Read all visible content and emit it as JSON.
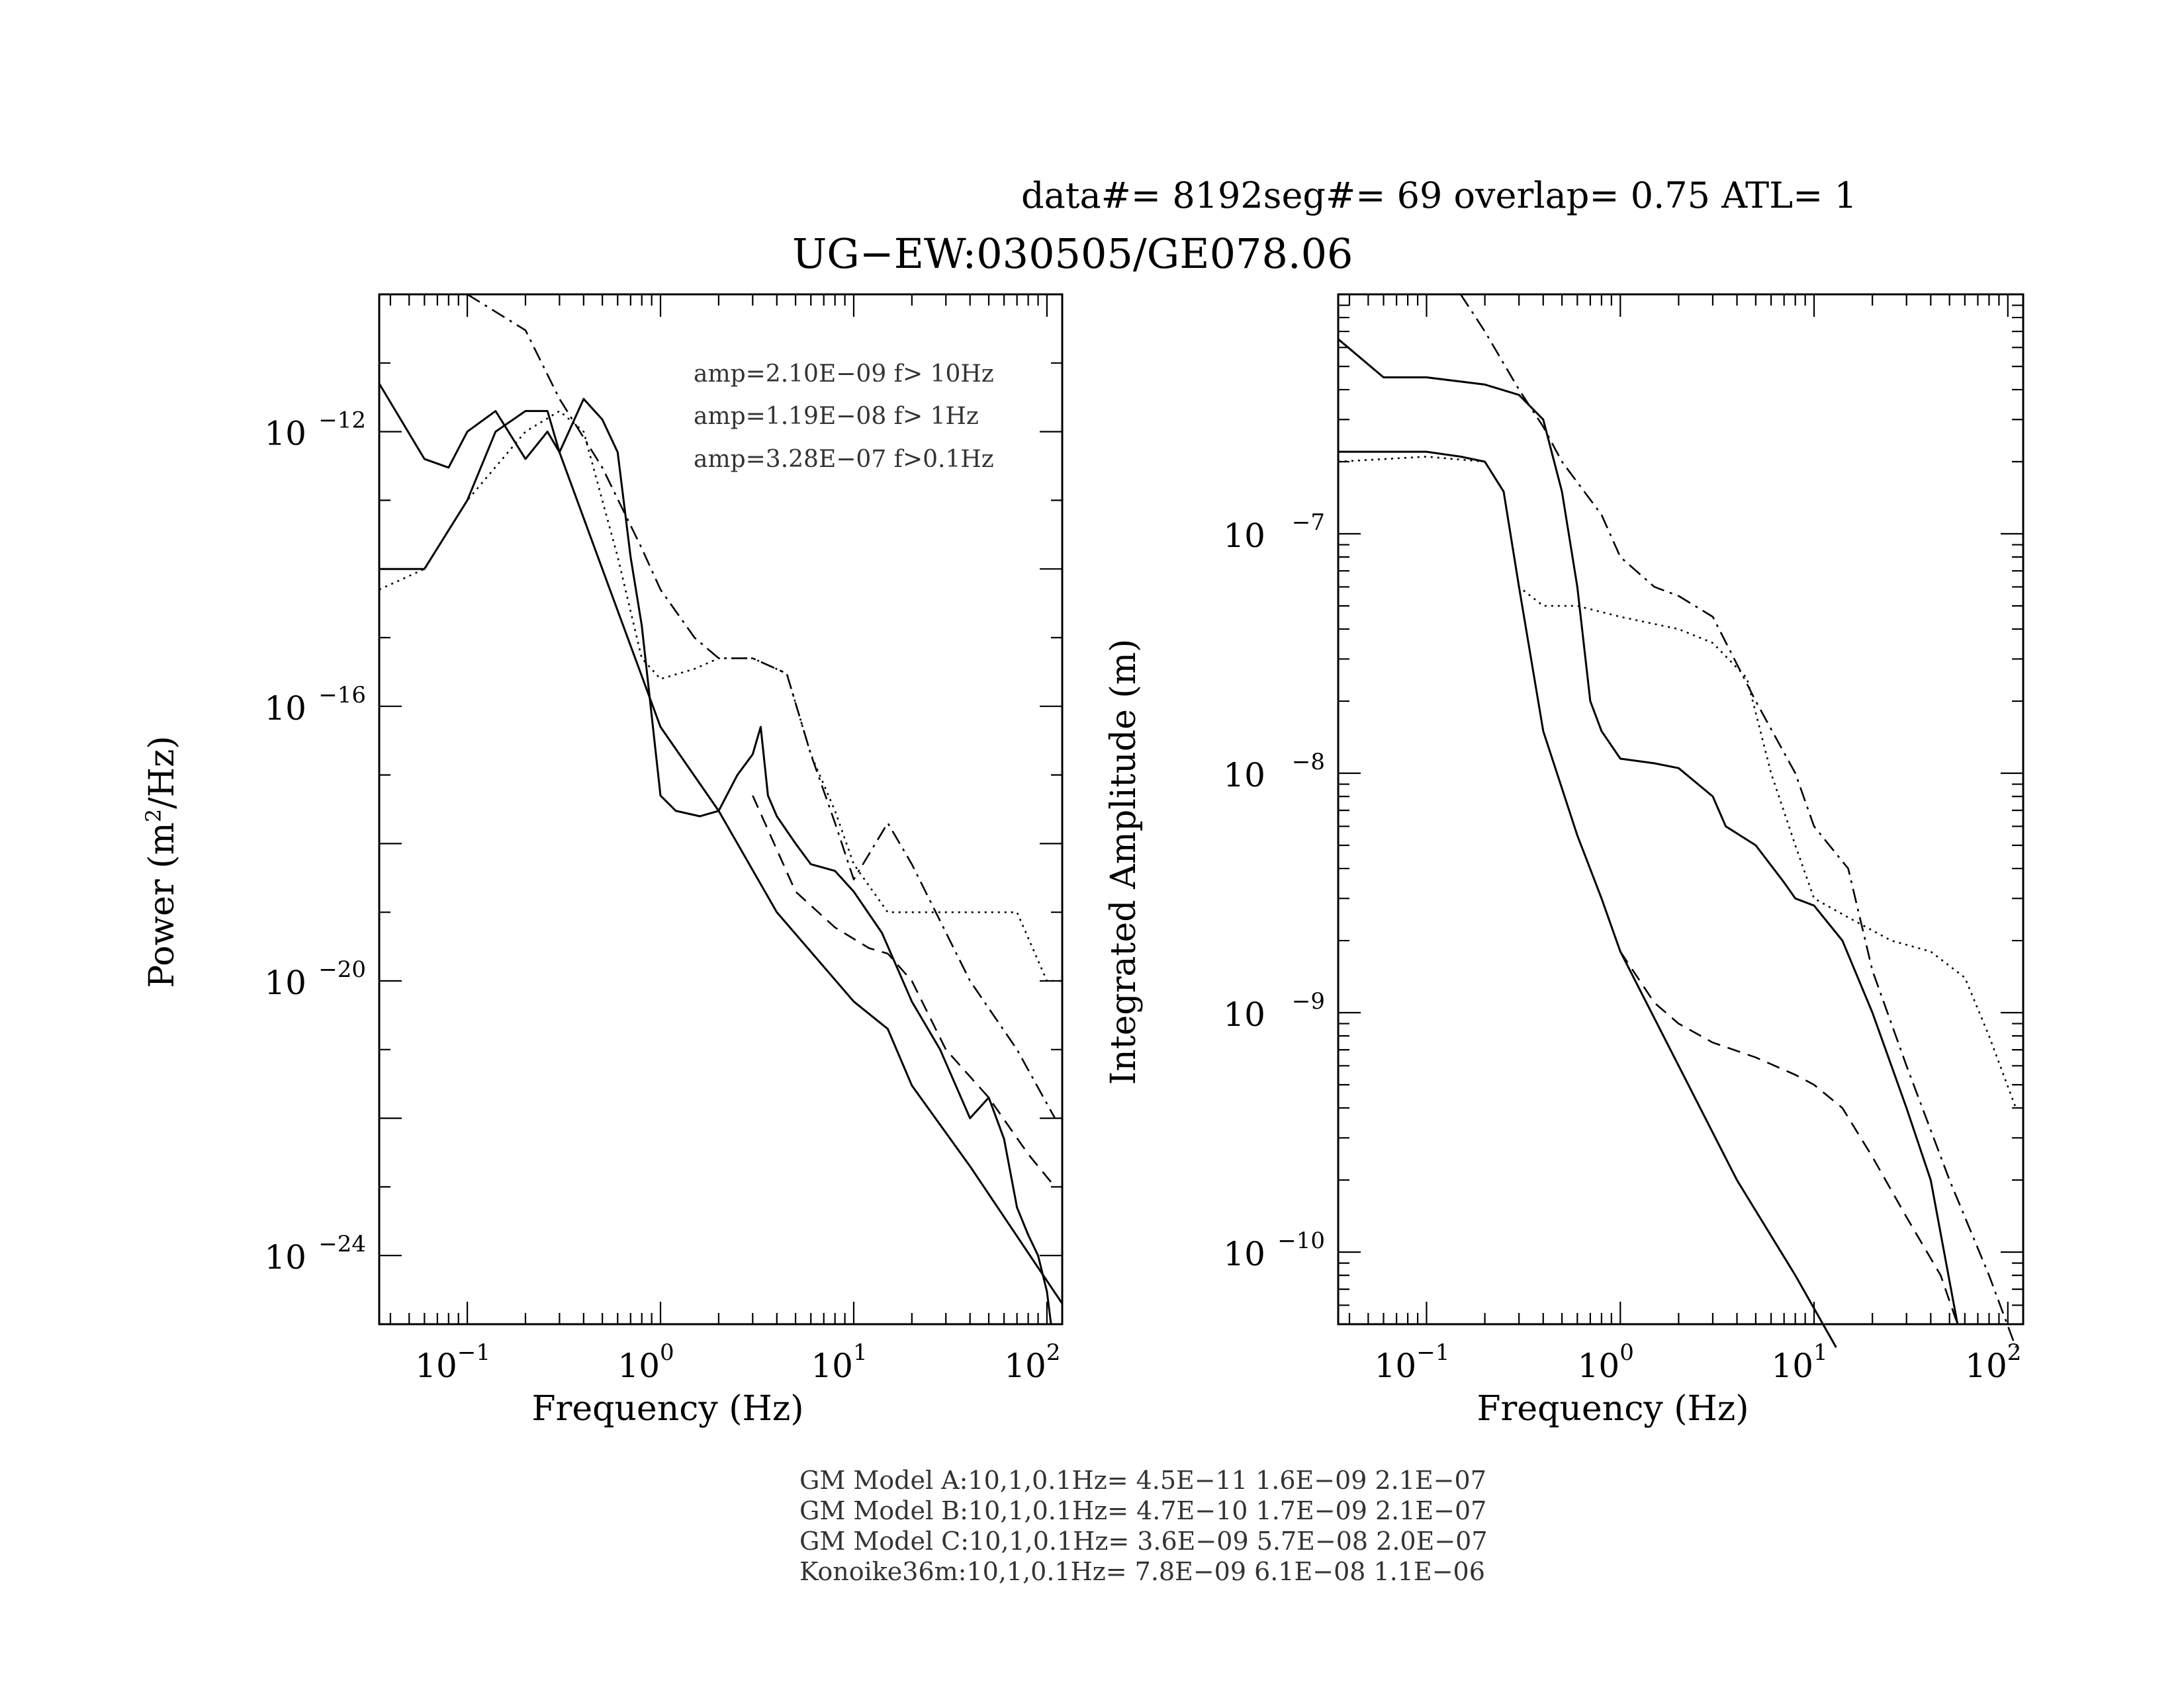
{
  "header": {
    "info": "data#= 8192seg#= 69 overlap=  0.75 ATL= 1",
    "title": "UG−EW:030505/GE078.06"
  },
  "footer": {
    "lines": [
      "GM Model A:10,1,0.1Hz= 4.5E−11 1.6E−09 2.1E−07",
      "GM Model B:10,1,0.1Hz= 4.7E−10 1.7E−09 2.1E−07",
      "GM Model C:10,1,0.1Hz= 3.6E−09 5.7E−08 2.0E−07",
      "Konoike36m:10,1,0.1Hz= 7.8E−09 6.1E−08 1.1E−06"
    ]
  },
  "chart_data": [
    {
      "type": "line",
      "panel": "left",
      "xlabel": "Frequency (Hz)",
      "ylabel_prefix": "Power (m",
      "ylabel_sup": "2",
      "ylabel_suffix": "/Hz)",
      "xscale": "log",
      "yscale": "log",
      "xlim": [
        0.035,
        120
      ],
      "ylim": [
        1e-25,
        1e-10
      ],
      "x_ticks": [
        {
          "base": "10",
          "exp": "−1",
          "value": 0.1
        },
        {
          "base": "10",
          "exp": "0",
          "value": 1
        },
        {
          "base": "10",
          "exp": "1",
          "value": 10
        },
        {
          "base": "10",
          "exp": "2",
          "value": 100
        }
      ],
      "y_ticks": [
        {
          "base": "10",
          "exp": "−12",
          "value": 1e-12
        },
        {
          "base": "10",
          "exp": "−16",
          "value": 1e-16
        },
        {
          "base": "10",
          "exp": "−20",
          "value": 1e-20
        },
        {
          "base": "10",
          "exp": "−24",
          "value": 1e-24
        }
      ],
      "annotations": [
        "amp=2.10E−09 f> 10Hz",
        "amp=1.19E−08 f>  1Hz",
        "amp=3.28E−07 f>0.1Hz"
      ],
      "series": [
        {
          "style": "solid",
          "x": [
            0.035,
            0.06,
            0.08,
            0.1,
            0.14,
            0.2,
            0.26,
            0.3,
            0.4,
            0.5,
            0.6,
            0.7,
            0.8,
            1.0,
            1.2,
            1.6,
            2.0,
            2.5,
            3.0,
            3.3,
            3.6,
            4.0,
            5.0,
            6.0,
            8.0,
            10.0,
            14.0,
            20.0,
            28.0,
            40.0,
            50.0,
            60.0,
            70.0,
            80.0,
            90.0,
            100.0,
            105.0
          ],
          "y": [
            5e-12,
            4e-13,
            3e-13,
            1e-12,
            2e-12,
            4e-13,
            1e-12,
            5e-13,
            3e-12,
            1.5e-12,
            5e-13,
            1.5e-14,
            1.5e-15,
            5e-18,
            3e-18,
            2.5e-18,
            3e-18,
            1e-17,
            2e-17,
            5e-17,
            5e-18,
            2.5e-18,
            1e-18,
            5e-19,
            4e-19,
            2e-19,
            5e-20,
            5e-21,
            1e-21,
            1e-22,
            2e-22,
            5e-23,
            5e-24,
            2e-24,
            1e-24,
            3e-25,
            1e-25
          ]
        },
        {
          "style": "solid",
          "x": [
            0.035,
            0.06,
            0.1,
            0.14,
            0.2,
            0.26,
            0.3,
            0.5,
            1.0,
            2.0,
            4.0,
            10.0,
            15.0,
            20.0,
            40.0,
            120.0
          ],
          "y": [
            1e-14,
            1e-14,
            1e-13,
            1e-12,
            2e-12,
            2e-12,
            5e-13,
            1e-14,
            5e-17,
            3e-18,
            1e-19,
            5e-21,
            2e-21,
            3e-22,
            2e-23,
            2e-25
          ]
        },
        {
          "style": "dotted",
          "x": [
            0.035,
            0.06,
            0.1,
            0.2,
            0.3,
            0.4,
            0.6,
            0.8,
            1.0,
            1.5,
            2.0,
            3.0,
            4.5,
            6.0,
            8.0,
            10.0,
            15.0,
            20.0,
            40.0,
            70.0,
            100.0,
            120.0
          ],
          "y": [
            5e-15,
            1e-14,
            1e-13,
            1e-12,
            2e-12,
            1e-12,
            1.5e-14,
            5e-16,
            2.5e-16,
            3.5e-16,
            5e-16,
            5e-16,
            3e-16,
            2e-17,
            3e-18,
            5e-19,
            1e-19,
            1e-19,
            1e-19,
            1e-19,
            1e-20,
            1e-20
          ]
        },
        {
          "style": "dashdot",
          "x": [
            0.1,
            0.2,
            0.3,
            0.5,
            0.8,
            1.0,
            1.5,
            2.0,
            3.0,
            4.5,
            6.0,
            8.0,
            10.0,
            15.0,
            20.0,
            40.0,
            70.0,
            110.0
          ],
          "y": [
            1e-10,
            3e-11,
            3e-12,
            3e-13,
            2e-14,
            5e-15,
            1e-15,
            5e-16,
            5e-16,
            3e-16,
            2e-17,
            2e-18,
            3e-19,
            2e-18,
            5e-19,
            1e-20,
            1e-21,
            1e-22
          ]
        },
        {
          "style": "dashed",
          "x": [
            3.0,
            5.0,
            8.0,
            12.0,
            15.0,
            20.0,
            30.0,
            50.0,
            80.0,
            110.0
          ],
          "y": [
            5e-18,
            2e-19,
            6e-20,
            3e-20,
            2.5e-20,
            1e-20,
            1e-21,
            2e-22,
            3e-23,
            1e-23
          ]
        }
      ]
    },
    {
      "type": "line",
      "panel": "right",
      "xlabel": "Frequency (Hz)",
      "ylabel": "Integrated Amplitude (m)",
      "xscale": "log",
      "yscale": "log",
      "xlim": [
        0.035,
        120
      ],
      "ylim": [
        5e-11,
        1e-06
      ],
      "x_ticks": [
        {
          "base": "10",
          "exp": "−1",
          "value": 0.1
        },
        {
          "base": "10",
          "exp": "0",
          "value": 1
        },
        {
          "base": "10",
          "exp": "1",
          "value": 10
        },
        {
          "base": "10",
          "exp": "2",
          "value": 100
        }
      ],
      "y_ticks": [
        {
          "base": "10",
          "exp": "−7",
          "value": 1e-07
        },
        {
          "base": "10",
          "exp": "−8",
          "value": 1e-08
        },
        {
          "base": "10",
          "exp": "−9",
          "value": 1e-09
        },
        {
          "base": "10",
          "exp": "−10",
          "value": 1e-10
        }
      ],
      "series": [
        {
          "style": "solid",
          "x": [
            0.035,
            0.06,
            0.1,
            0.2,
            0.3,
            0.4,
            0.5,
            0.6,
            0.7,
            0.8,
            1.0,
            1.5,
            2.0,
            3.0,
            3.5,
            5.0,
            7.0,
            8.0,
            10.0,
            14.0,
            20.0,
            30.0,
            40.0,
            55.0
          ],
          "y": [
            6.5e-07,
            4.5e-07,
            4.5e-07,
            4.2e-07,
            3.8e-07,
            3e-07,
            1.5e-07,
            6e-08,
            2e-08,
            1.5e-08,
            1.15e-08,
            1.1e-08,
            1.05e-08,
            8e-09,
            6e-09,
            5e-09,
            3.5e-09,
            3e-09,
            2.8e-09,
            2e-09,
            1e-09,
            4e-10,
            2e-10,
            5e-11
          ]
        },
        {
          "style": "solid",
          "x": [
            0.035,
            0.06,
            0.1,
            0.15,
            0.2,
            0.25,
            0.3,
            0.4,
            0.6,
            0.8,
            1.0,
            2.0,
            4.0,
            8.0,
            13.0
          ],
          "y": [
            2.2e-07,
            2.2e-07,
            2.2e-07,
            2.1e-07,
            2e-07,
            1.5e-07,
            6e-08,
            1.5e-08,
            5.5e-09,
            3e-09,
            1.8e-09,
            6e-10,
            2e-10,
            8e-11,
            4e-11
          ]
        },
        {
          "style": "dotted",
          "x": [
            0.035,
            0.1,
            0.2,
            0.25,
            0.3,
            0.4,
            0.6,
            1.0,
            2.0,
            3.0,
            4.5,
            6.0,
            8.0,
            10.0,
            15.0,
            25.0,
            40.0,
            60.0,
            80.0,
            110.0
          ],
          "y": [
            2e-07,
            2.1e-07,
            2e-07,
            1.5e-07,
            6e-08,
            5e-08,
            5e-08,
            4.5e-08,
            4e-08,
            3.5e-08,
            2.5e-08,
            1e-08,
            5e-09,
            3e-09,
            2.5e-09,
            2e-09,
            1.8e-09,
            1.4e-09,
            8e-10,
            4e-10
          ]
        },
        {
          "style": "dashdot",
          "x": [
            0.15,
            0.2,
            0.3,
            0.4,
            0.5,
            0.8,
            1.0,
            1.5,
            2.0,
            3.0,
            5.0,
            8.0,
            10.0,
            12.0,
            15.0,
            20.0,
            30.0,
            50.0,
            80.0,
            110.0
          ],
          "y": [
            1e-06,
            7e-07,
            4e-07,
            2.8e-07,
            2e-07,
            1.2e-07,
            8e-08,
            6e-08,
            5.5e-08,
            4.5e-08,
            2e-08,
            1e-08,
            6e-09,
            5e-09,
            4e-09,
            1.5e-09,
            6e-10,
            2e-10,
            8e-11,
            4e-11
          ]
        },
        {
          "style": "dashed",
          "x": [
            1.0,
            1.5,
            2.0,
            3.0,
            5.0,
            8.0,
            10.0,
            14.0,
            20.0,
            30.0,
            45.0,
            55.0
          ],
          "y": [
            1.8e-09,
            1.1e-09,
            9e-10,
            7.5e-10,
            6.5e-10,
            5.5e-10,
            5e-10,
            4e-10,
            2.5e-10,
            1.4e-10,
            8e-11,
            5e-11
          ]
        }
      ]
    }
  ]
}
